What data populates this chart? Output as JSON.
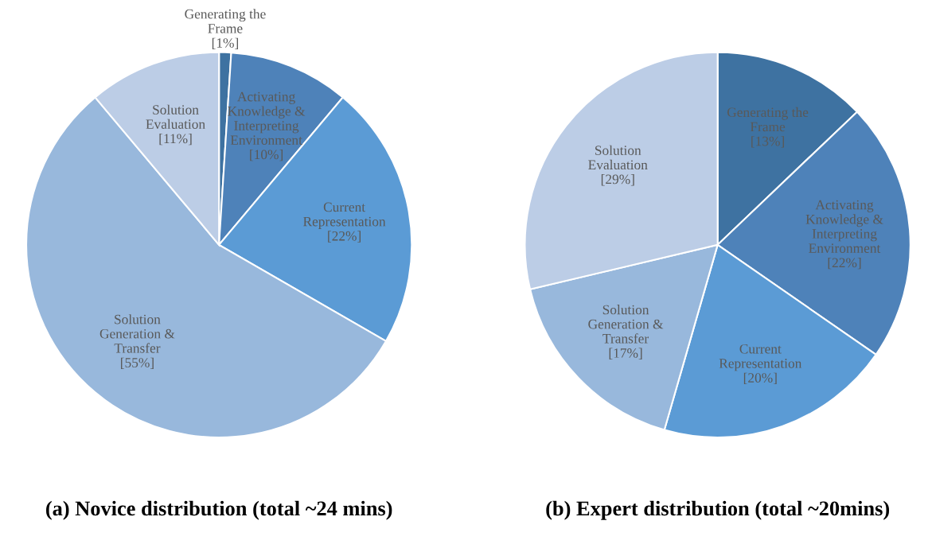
{
  "chart_data": [
    {
      "type": "pie",
      "title": "(a) Novice distribution (total ~24 mins)",
      "categories": [
        "Generating the\nFrame",
        "Activating\nKnowledge &\nInterpreting\nEnvironment",
        "Current\nRepresentation",
        "Solution\nGeneration &\nTransfer",
        "Solution\nEvaluation"
      ],
      "values": [
        1,
        10,
        22,
        55,
        11
      ],
      "value_labels": [
        "[1%]",
        "[10%]",
        "[22%]",
        "[55%]",
        "[11%]"
      ],
      "colors": [
        "#3e72a1",
        "#4e82b9",
        "#5b9bd5",
        "#98b8dc",
        "#bccde6"
      ]
    },
    {
      "type": "pie",
      "title": "(b) Expert distribution (total ~20mins)",
      "categories": [
        "Generating the\nFrame",
        "Activating\nKnowledge &\nInterpreting\nEnvironment",
        "Current\nRepresentation",
        "Solution\nGeneration &\nTransfer",
        "Solution\nEvaluation"
      ],
      "values": [
        13,
        22,
        20,
        17,
        29
      ],
      "value_labels": [
        "[13%]",
        "[22%]",
        "[20%]",
        "[17%]",
        "[29%]"
      ],
      "colors": [
        "#3e72a1",
        "#4e82b9",
        "#5b9bd5",
        "#98b8dc",
        "#bccde6"
      ]
    }
  ]
}
